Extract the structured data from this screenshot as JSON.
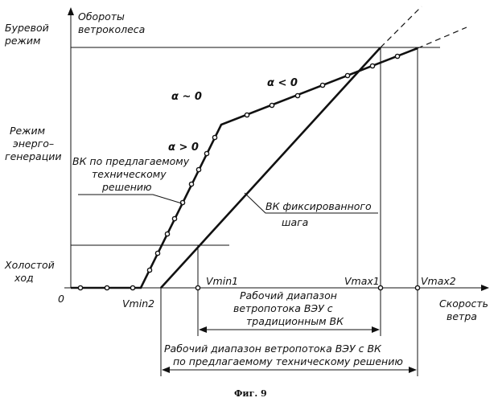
{
  "axes": {
    "y_title_line1": "Обороты",
    "y_title_line2": "ветроколеса",
    "x_title_line1": "Скорость",
    "x_title_line2": "ветра",
    "origin": "0"
  },
  "modes": {
    "storm_line1": "Буревой",
    "storm_line2": "режим",
    "gen_line1": "Режим",
    "gen_line2": "энерго–",
    "gen_line3": "генерации",
    "idle_line1": "Холостой",
    "idle_line2": "ход"
  },
  "speeds": {
    "vmin1": "Vmin1",
    "vmin2": "Vmin2",
    "vmax1": "Vmax1",
    "vmax2": "Vmax2"
  },
  "angles": {
    "alpha_zero": "α ~ 0",
    "alpha_pos": "α > 0",
    "alpha_neg": "α < 0"
  },
  "curves": {
    "proposed_line1": "ВК по предлагаемому",
    "proposed_line2": "техническому",
    "proposed_line3": "решению",
    "fixed_line1": "ВК фиксированного",
    "fixed_line2": "шага"
  },
  "ranges": {
    "traditional_line1": "Рабочий диапазон",
    "traditional_line2": "ветропотока ВЭУ с",
    "traditional_line3": "традиционным ВК",
    "proposed_line1": "Рабочий диапазон ветропотока ВЭУ с ВК",
    "proposed_line2": "по предлагаемому техническому решению"
  },
  "caption": "Фиг. 9"
}
